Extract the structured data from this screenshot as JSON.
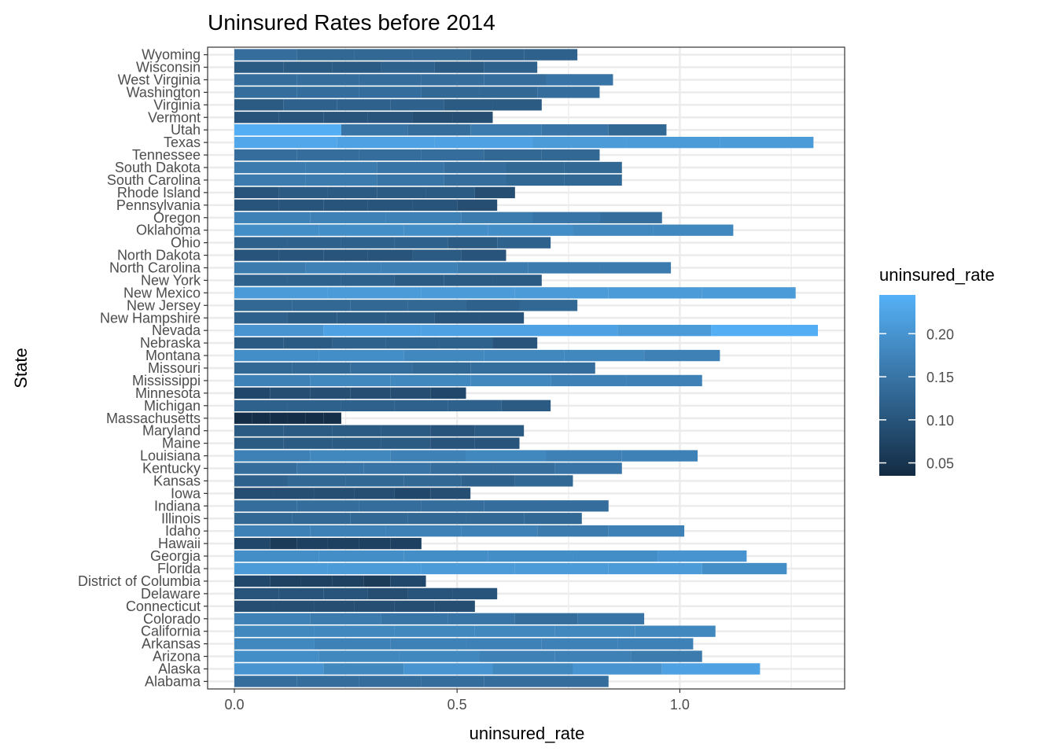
{
  "chart_data": {
    "type": "bar",
    "orientation": "horizontal",
    "stacked": true,
    "title": "Uninsured Rates before 2014",
    "xlabel": "uninsured_rate",
    "ylabel": "State",
    "xlim": [
      -0.06,
      1.37
    ],
    "xticks": [
      "0.0",
      "0.5",
      "1.0"
    ],
    "xtick_values": [
      0,
      0.5,
      1.0
    ],
    "grid": true,
    "legend": {
      "title": "uninsured_rate",
      "position": "right",
      "labels": [
        "0.20",
        "0.15",
        "0.10",
        "0.05"
      ],
      "label_values": [
        0.2,
        0.15,
        0.1,
        0.05
      ],
      "range": [
        0.035,
        0.245
      ],
      "color_low": "#132B43",
      "color_high": "#56B1F7"
    },
    "categories": [
      "Alabama",
      "Alaska",
      "Arizona",
      "Arkansas",
      "California",
      "Colorado",
      "Connecticut",
      "Delaware",
      "District of Columbia",
      "Florida",
      "Georgia",
      "Hawaii",
      "Idaho",
      "Illinois",
      "Indiana",
      "Iowa",
      "Kansas",
      "Kentucky",
      "Louisiana",
      "Maine",
      "Maryland",
      "Massachusetts",
      "Michigan",
      "Minnesota",
      "Mississippi",
      "Missouri",
      "Montana",
      "Nebraska",
      "Nevada",
      "New Hampshire",
      "New Jersey",
      "New Mexico",
      "New York",
      "North Carolina",
      "North Dakota",
      "Ohio",
      "Oklahoma",
      "Oregon",
      "Pennsylvania",
      "Rhode Island",
      "South Carolina",
      "South Dakota",
      "Tennessee",
      "Texas",
      "Utah",
      "Vermont",
      "Virginia",
      "Washington",
      "West Virginia",
      "Wisconsin",
      "Wyoming"
    ],
    "segments": [
      [
        0.14,
        0.14,
        0.14,
        0.14,
        0.14,
        0.14
      ],
      [
        0.2,
        0.18,
        0.2,
        0.18,
        0.2,
        0.22
      ],
      [
        0.19,
        0.18,
        0.18,
        0.17,
        0.17,
        0.16
      ],
      [
        0.18,
        0.17,
        0.17,
        0.17,
        0.17,
        0.17
      ],
      [
        0.18,
        0.18,
        0.18,
        0.18,
        0.18,
        0.18
      ],
      [
        0.17,
        0.16,
        0.15,
        0.15,
        0.14,
        0.15
      ],
      [
        0.09,
        0.09,
        0.09,
        0.09,
        0.09,
        0.09
      ],
      [
        0.1,
        0.1,
        0.1,
        0.09,
        0.1,
        0.1
      ],
      [
        0.08,
        0.07,
        0.07,
        0.07,
        0.06,
        0.08
      ],
      [
        0.21,
        0.21,
        0.21,
        0.21,
        0.21,
        0.19
      ],
      [
        0.19,
        0.19,
        0.19,
        0.19,
        0.19,
        0.2
      ],
      [
        0.08,
        0.06,
        0.07,
        0.07,
        0.07,
        0.07
      ],
      [
        0.17,
        0.17,
        0.17,
        0.17,
        0.16,
        0.17
      ],
      [
        0.13,
        0.13,
        0.13,
        0.13,
        0.13,
        0.13
      ],
      [
        0.14,
        0.14,
        0.14,
        0.14,
        0.14,
        0.14
      ],
      [
        0.09,
        0.09,
        0.09,
        0.09,
        0.08,
        0.09
      ],
      [
        0.12,
        0.13,
        0.13,
        0.13,
        0.12,
        0.13
      ],
      [
        0.14,
        0.15,
        0.15,
        0.14,
        0.14,
        0.15
      ],
      [
        0.17,
        0.18,
        0.17,
        0.18,
        0.17,
        0.17
      ],
      [
        0.11,
        0.11,
        0.11,
        0.11,
        0.1,
        0.1
      ],
      [
        0.11,
        0.11,
        0.11,
        0.11,
        0.1,
        0.11
      ],
      [
        0.04,
        0.04,
        0.04,
        0.04,
        0.04,
        0.04
      ],
      [
        0.12,
        0.12,
        0.12,
        0.12,
        0.12,
        0.11
      ],
      [
        0.08,
        0.09,
        0.09,
        0.09,
        0.09,
        0.08
      ],
      [
        0.17,
        0.18,
        0.18,
        0.18,
        0.17,
        0.17
      ],
      [
        0.13,
        0.13,
        0.14,
        0.13,
        0.14,
        0.14
      ],
      [
        0.19,
        0.19,
        0.18,
        0.18,
        0.18,
        0.17
      ],
      [
        0.11,
        0.11,
        0.12,
        0.12,
        0.12,
        0.1
      ],
      [
        0.2,
        0.22,
        0.22,
        0.22,
        0.21,
        0.24
      ],
      [
        0.12,
        0.11,
        0.11,
        0.11,
        0.1,
        0.1
      ],
      [
        0.13,
        0.13,
        0.13,
        0.13,
        0.12,
        0.13
      ],
      [
        0.21,
        0.21,
        0.21,
        0.21,
        0.21,
        0.21
      ],
      [
        0.12,
        0.12,
        0.12,
        0.11,
        0.11,
        0.11
      ],
      [
        0.16,
        0.17,
        0.17,
        0.16,
        0.16,
        0.16
      ],
      [
        0.1,
        0.1,
        0.1,
        0.1,
        0.11,
        0.1
      ],
      [
        0.12,
        0.12,
        0.12,
        0.12,
        0.11,
        0.12
      ],
      [
        0.19,
        0.19,
        0.19,
        0.19,
        0.18,
        0.18
      ],
      [
        0.17,
        0.17,
        0.17,
        0.16,
        0.15,
        0.14
      ],
      [
        0.1,
        0.1,
        0.1,
        0.1,
        0.1,
        0.09
      ],
      [
        0.1,
        0.11,
        0.11,
        0.11,
        0.11,
        0.09
      ],
      [
        0.16,
        0.16,
        0.15,
        0.14,
        0.13,
        0.13
      ],
      [
        0.16,
        0.16,
        0.15,
        0.14,
        0.13,
        0.13
      ],
      [
        0.14,
        0.14,
        0.14,
        0.14,
        0.13,
        0.13
      ],
      [
        0.23,
        0.22,
        0.22,
        0.21,
        0.21,
        0.21
      ],
      [
        0.24,
        0.15,
        0.14,
        0.16,
        0.15,
        0.13
      ],
      [
        0.1,
        0.1,
        0.1,
        0.1,
        0.09,
        0.09
      ],
      [
        0.11,
        0.12,
        0.12,
        0.12,
        0.11,
        0.11
      ],
      [
        0.14,
        0.14,
        0.14,
        0.13,
        0.13,
        0.14
      ],
      [
        0.14,
        0.14,
        0.14,
        0.14,
        0.14,
        0.15
      ],
      [
        0.11,
        0.11,
        0.11,
        0.12,
        0.11,
        0.12
      ],
      [
        0.14,
        0.13,
        0.13,
        0.13,
        0.12,
        0.12
      ]
    ]
  }
}
